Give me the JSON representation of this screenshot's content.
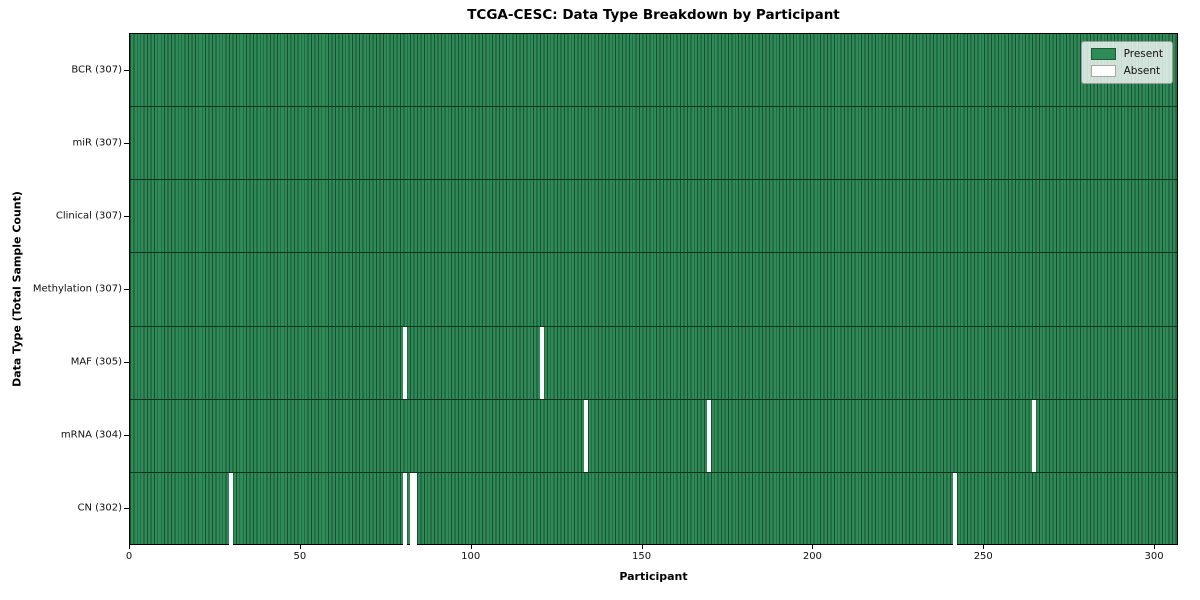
{
  "chart_data": {
    "type": "heatmap",
    "title": "TCGA-CESC: Data Type Breakdown by Participant",
    "xlabel": "Participant",
    "ylabel": "Data Type (Total Sample Count)",
    "x_ticks": [
      0,
      50,
      100,
      150,
      200,
      250,
      300
    ],
    "x_range": [
      0,
      307
    ],
    "grid": false,
    "legend_position": "upper right",
    "legend": [
      {
        "label": "Present",
        "color": "#2e8b57"
      },
      {
        "label": "Absent",
        "color": "#ffffff"
      }
    ],
    "rows": [
      {
        "label": "BCR (307)",
        "total": 307,
        "absent_participants": []
      },
      {
        "label": "miR (307)",
        "total": 307,
        "absent_participants": []
      },
      {
        "label": "Clinical (307)",
        "total": 307,
        "absent_participants": []
      },
      {
        "label": "Methylation (307)",
        "total": 307,
        "absent_participants": []
      },
      {
        "label": "MAF (305)",
        "total": 305,
        "absent_participants": [
          80,
          120
        ]
      },
      {
        "label": "mRNA (304)",
        "total": 304,
        "absent_participants": [
          133,
          169,
          264
        ]
      },
      {
        "label": "CN (302)",
        "total": 302,
        "absent_participants": [
          29,
          80,
          82,
          83,
          241
        ]
      }
    ],
    "colors": {
      "present": "#2e8b57",
      "absent": "#ffffff",
      "cell_edge": "#1b4d30",
      "row_divider": "#10331f",
      "axis": "#000000"
    }
  }
}
